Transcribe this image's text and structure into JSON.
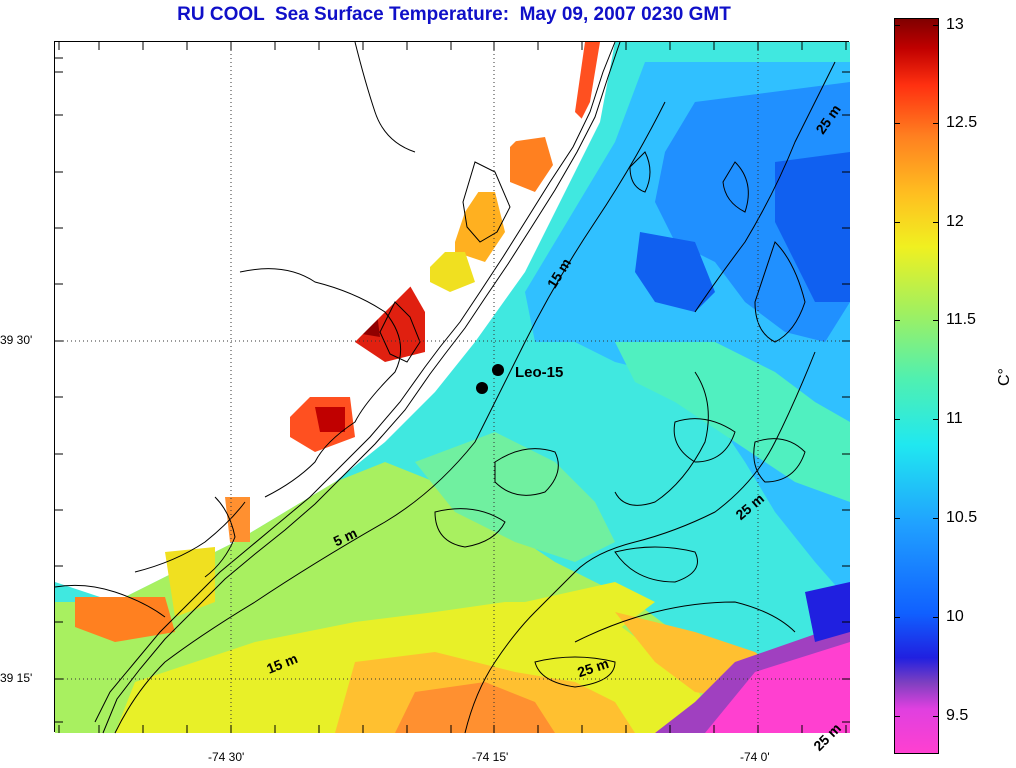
{
  "title": "RU COOL  Sea Surface Temperature:  May 09, 2007 0230 GMT",
  "map": {
    "lat_labels": [
      "39 30'",
      "39 15'"
    ],
    "lon_labels": [
      "-74 30'",
      "-74 15'",
      "-74 0'"
    ],
    "contour_labels": [
      "25 m",
      "15 m",
      "5 m",
      "15 m",
      "25 m",
      "25 m",
      "25 m"
    ],
    "station_label": "Leo-15"
  },
  "colorbar": {
    "unit": "C°",
    "ticks": [
      "13",
      "12.5",
      "12",
      "11.5",
      "11",
      "10.5",
      "10",
      "9.5"
    ],
    "colormap": "jet-like with magenta low end",
    "range": [
      9.35,
      13
    ]
  }
}
